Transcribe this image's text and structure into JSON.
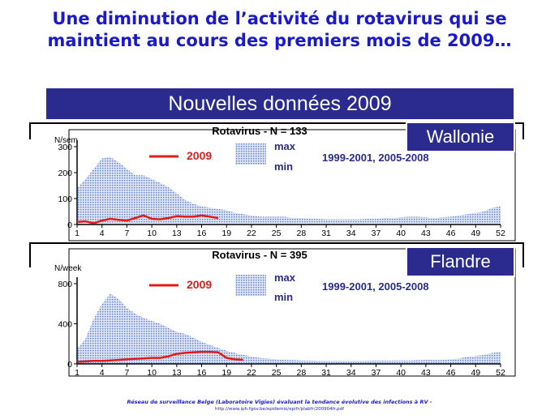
{
  "title": {
    "line1": "Une diminution de l’activité du rotavirus qui se",
    "line2": "maintient au cours des premiers mois de 2009…"
  },
  "banner": "Nouvelles données 2009",
  "colors": {
    "title": "#1a1acc",
    "banner": "#2b2b8f",
    "range": "#8fa3d6",
    "line2009": "#e11a1a",
    "legend_text": "#2b2b8f"
  },
  "footer": {
    "line1": "Réseau de surveillance Belge (Laboratoire Vigies) évaluant la tendance évolutive des infections à RV -",
    "line2": "http://www.iph.fgov.be/epidemio/epifr/plabfr/200904fr.pdf"
  },
  "chart_data": [
    {
      "type": "area",
      "region": "Wallonie",
      "title": "Rotavirus - N = 133",
      "ylabel": "N/sem",
      "ylim": [
        0,
        300
      ],
      "yticks": [
        0,
        100,
        200,
        300
      ],
      "xticks": [
        1,
        4,
        7,
        10,
        13,
        16,
        19,
        22,
        25,
        28,
        31,
        34,
        37,
        40,
        43,
        46,
        49,
        52
      ],
      "legend": {
        "line": "2009",
        "band_max": "max",
        "band_min": "min",
        "band_period": "1999-2001, 2005-2008"
      },
      "series": [
        {
          "name": "max",
          "values": [
            140,
            175,
            215,
            255,
            260,
            240,
            215,
            190,
            190,
            175,
            160,
            145,
            120,
            95,
            80,
            70,
            65,
            60,
            55,
            45,
            40,
            35,
            30,
            30,
            30,
            30,
            25,
            25,
            22,
            22,
            20,
            20,
            20,
            20,
            20,
            22,
            22,
            25,
            25,
            28,
            30,
            30,
            28,
            25,
            28,
            30,
            35,
            40,
            45,
            50,
            65,
            70
          ]
        },
        {
          "name": "min",
          "values": [
            0,
            5,
            5,
            5,
            5,
            5,
            5,
            5,
            5,
            5,
            5,
            5,
            5,
            5,
            5,
            5,
            5,
            5,
            5,
            5,
            5,
            5,
            5,
            5,
            5,
            5,
            5,
            5,
            5,
            5,
            5,
            5,
            5,
            5,
            5,
            5,
            5,
            5,
            5,
            5,
            5,
            5,
            5,
            5,
            5,
            5,
            5,
            5,
            5,
            5,
            5,
            5
          ]
        },
        {
          "name": "2009",
          "values": [
            10,
            12,
            5,
            15,
            22,
            18,
            15,
            25,
            35,
            22,
            20,
            25,
            32,
            30,
            30,
            35,
            30,
            25
          ]
        }
      ]
    },
    {
      "type": "area",
      "region": "Flandre",
      "title": "Rotavirus - N = 395",
      "ylabel": "N/week",
      "ylim": [
        0,
        800
      ],
      "yticks": [
        0,
        400,
        800
      ],
      "xticks": [
        1,
        4,
        7,
        10,
        13,
        16,
        19,
        22,
        25,
        28,
        31,
        34,
        37,
        40,
        43,
        46,
        49,
        52
      ],
      "legend": {
        "line": "2009",
        "band_max": "max",
        "band_min": "min",
        "band_period": "1999-2001, 2005-2008"
      },
      "series": [
        {
          "name": "max",
          "values": [
            150,
            250,
            450,
            600,
            700,
            650,
            560,
            500,
            460,
            430,
            400,
            360,
            320,
            300,
            260,
            220,
            190,
            160,
            130,
            110,
            90,
            75,
            60,
            55,
            45,
            40,
            38,
            35,
            33,
            30,
            30,
            30,
            30,
            30,
            30,
            32,
            35,
            35,
            35,
            35,
            35,
            38,
            40,
            40,
            40,
            45,
            55,
            70,
            80,
            90,
            110,
            120
          ]
        },
        {
          "name": "min",
          "values": [
            0,
            5,
            5,
            5,
            5,
            5,
            5,
            5,
            5,
            5,
            5,
            5,
            5,
            5,
            5,
            5,
            5,
            5,
            5,
            5,
            5,
            5,
            5,
            5,
            5,
            5,
            5,
            5,
            5,
            5,
            5,
            5,
            5,
            5,
            5,
            5,
            5,
            5,
            5,
            5,
            5,
            5,
            5,
            5,
            5,
            5,
            5,
            5,
            5,
            5,
            5,
            5
          ]
        },
        {
          "name": "2009",
          "values": [
            20,
            25,
            30,
            30,
            35,
            40,
            45,
            50,
            55,
            60,
            60,
            75,
            100,
            110,
            115,
            120,
            120,
            115,
            60,
            45,
            40
          ]
        }
      ]
    }
  ]
}
